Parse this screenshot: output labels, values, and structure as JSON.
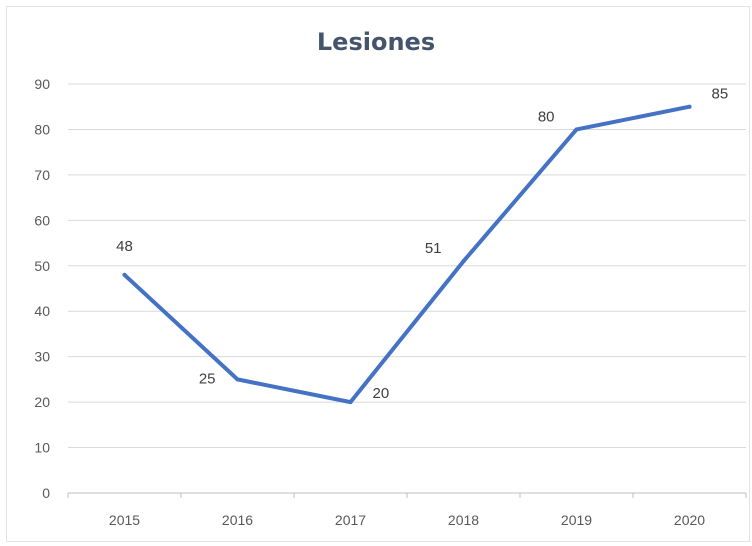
{
  "chart_data": {
    "type": "line",
    "title": "Lesiones",
    "categories": [
      "2015",
      "2016",
      "2017",
      "2018",
      "2019",
      "2020"
    ],
    "series": [
      {
        "values": [
          48,
          25,
          20,
          51,
          80,
          85
        ],
        "color": "#4472c4"
      }
    ],
    "ylim": [
      0,
      90
    ],
    "yticks": [
      "0",
      "10",
      "20",
      "30",
      "40",
      "50",
      "60",
      "70",
      "80",
      "90"
    ],
    "grid": true,
    "legend": "none",
    "data_labels": [
      "48",
      "25",
      "20",
      "51",
      "80",
      "85"
    ]
  }
}
